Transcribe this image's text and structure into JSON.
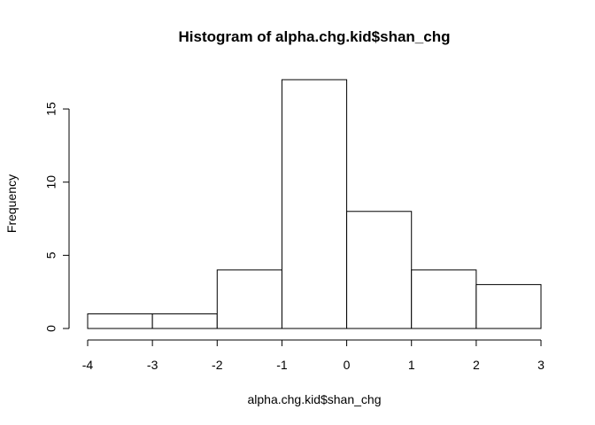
{
  "chart_data": {
    "type": "bar",
    "subtype": "histogram",
    "title": "Histogram of alpha.chg.kid$shan_chg",
    "xlabel": "alpha.chg.kid$shan_chg",
    "ylabel": "Frequency",
    "bins": [
      {
        "from": -4,
        "to": -3,
        "count": 1
      },
      {
        "from": -3,
        "to": -2,
        "count": 1
      },
      {
        "from": -2,
        "to": -1,
        "count": 4
      },
      {
        "from": -1,
        "to": 0,
        "count": 17
      },
      {
        "from": 0,
        "to": 1,
        "count": 8
      },
      {
        "from": 1,
        "to": 2,
        "count": 4
      },
      {
        "from": 2,
        "to": 3,
        "count": 3
      }
    ],
    "xlim": [
      -4,
      3
    ],
    "ylim": [
      0,
      17
    ],
    "x_ticks": [
      -4,
      -3,
      -2,
      -1,
      0,
      1,
      2,
      3
    ],
    "y_ticks": [
      0,
      5,
      10,
      15
    ],
    "grid": false,
    "bar_fill": "#ffffff",
    "bar_stroke": "#000000"
  }
}
